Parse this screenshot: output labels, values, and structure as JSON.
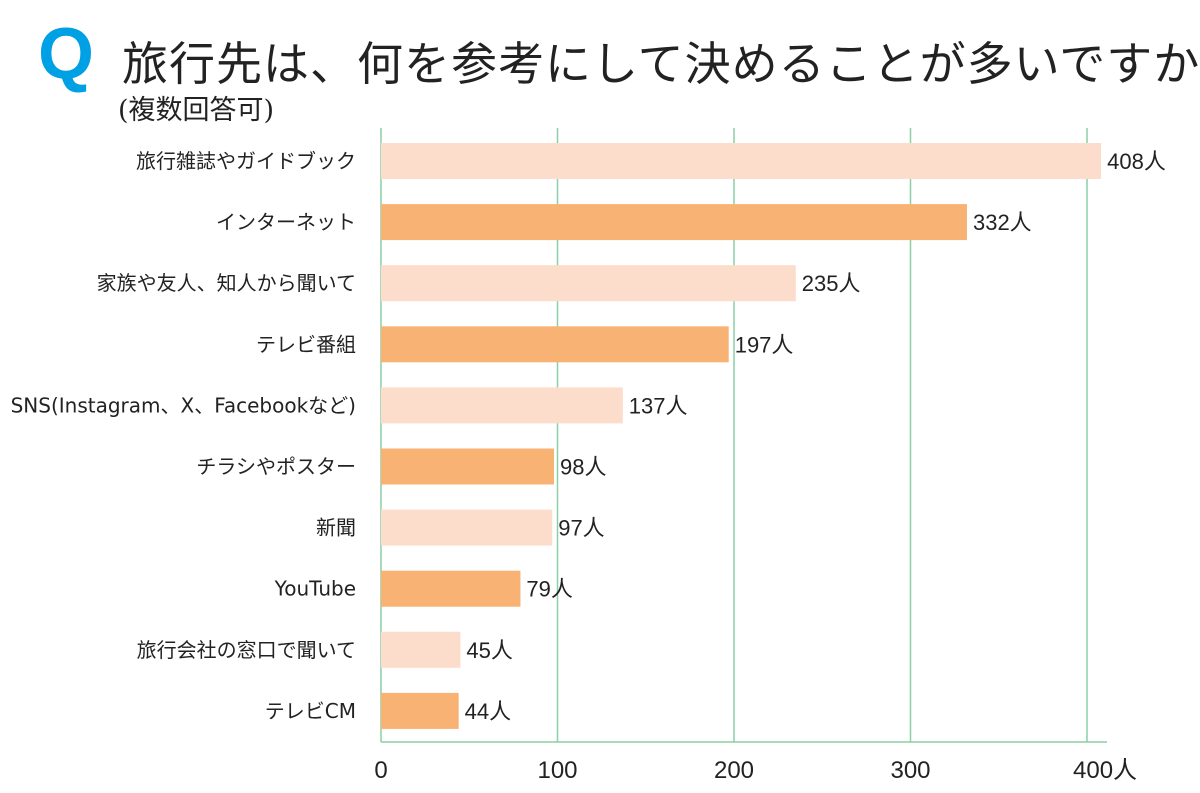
{
  "chart_data": {
    "type": "bar",
    "orientation": "horizontal",
    "title_mark": "Q",
    "title": "旅行先は、何を参考にして決めることが多いですか?",
    "subtitle": "(複数回答可)",
    "categories": [
      "旅行雑誌やガイドブック",
      "インターネット",
      "家族や友人、知人から聞いて",
      "テレビ番組",
      "SNS(Instagram、X、Facebookなど)",
      "チラシやポスター",
      "新聞",
      "YouTube",
      "旅行会社の窓口で聞いて",
      "テレビCM"
    ],
    "values": [
      408,
      332,
      235,
      197,
      137,
      98,
      97,
      79,
      45,
      44
    ],
    "value_labels": [
      "408人",
      "332人",
      "235人",
      "197人",
      "137人",
      "98人",
      "97人",
      "79人",
      "45人",
      "44人"
    ],
    "xlim": [
      0,
      400
    ],
    "xticks": [
      "0",
      "100",
      "200",
      "300",
      "400人"
    ],
    "grid": true,
    "colors": {
      "title_mark": "#00a0e4",
      "bar_light": "#fcdccb",
      "bar_dark": "#f8b273",
      "grid": "#8ccfa6"
    }
  }
}
